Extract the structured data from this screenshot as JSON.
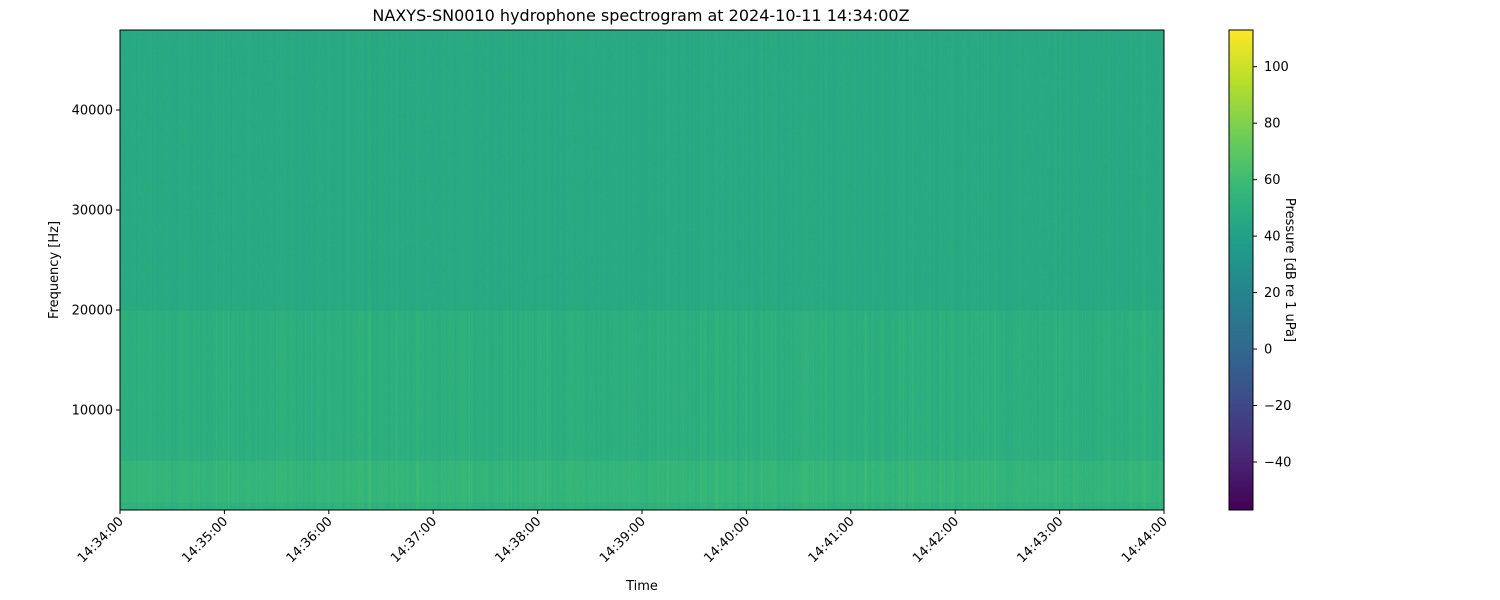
{
  "chart_data": {
    "type": "heatmap",
    "title": "NAXYS-SN0010 hydrophone spectrogram at 2024-10-11 14:34:00Z",
    "xlabel": "Time",
    "ylabel": "Frequency [Hz]",
    "x_range": [
      "14:34:00",
      "14:44:00"
    ],
    "x_ticks": [
      "14:34:00",
      "14:35:00",
      "14:36:00",
      "14:37:00",
      "14:38:00",
      "14:39:00",
      "14:40:00",
      "14:41:00",
      "14:42:00",
      "14:43:00",
      "14:44:00"
    ],
    "ylim": [
      0,
      48000
    ],
    "y_ticks": [
      10000,
      20000,
      30000,
      40000
    ],
    "colormap": "viridis",
    "colorbar": {
      "label": "Pressure [dB re 1 uPa]",
      "range": [
        -57,
        113
      ],
      "ticks": [
        -40,
        -20,
        0,
        20,
        40,
        60,
        80,
        100
      ]
    },
    "approx_levels_db": [
      {
        "freq_band_hz": [
          0,
          5000
        ],
        "level": 55
      },
      {
        "freq_band_hz": [
          5000,
          20000
        ],
        "level": 50
      },
      {
        "freq_band_hz": [
          20000,
          48000
        ],
        "level": 46
      }
    ],
    "grid": false
  }
}
